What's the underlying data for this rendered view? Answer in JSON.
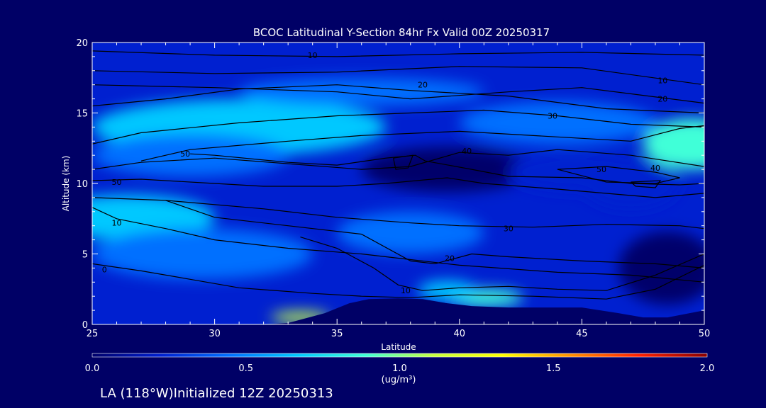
{
  "chart_data": {
    "type": "heatmap",
    "title": "BCOC Latitudinal Y-Section 84hr  Fx Valid 00Z 20250317",
    "xlabel": "Latitude",
    "ylabel": "Altitude (km)",
    "xlim": [
      25,
      50
    ],
    "ylim": [
      0,
      20
    ],
    "x_ticks": [
      "25",
      "30",
      "35",
      "40",
      "45",
      "50"
    ],
    "y_ticks": [
      "0",
      "5",
      "10",
      "15",
      "20"
    ],
    "colorbar": {
      "label_line1": "1.0",
      "unit": "(ug/m³)",
      "range": [
        0.0,
        2.0
      ],
      "ticks": [
        "0.0",
        "0.5",
        "1.0",
        "1.5",
        "2.0"
      ],
      "colors": [
        "#00006a",
        "#0020d0",
        "#0070ff",
        "#00c8ff",
        "#40ffd8",
        "#c8ff40",
        "#ffff00",
        "#ff9000",
        "#ff2000",
        "#8a0000"
      ]
    },
    "background_level": 0.3,
    "field_blobs": [
      {
        "lat": 27.5,
        "alt": 7.9,
        "value": 1.2,
        "rlat": 1.6,
        "ralt": 0.6
      },
      {
        "lat": 26.5,
        "alt": 7.6,
        "value": 0.7,
        "rlat": 3.5,
        "ralt": 1.6
      },
      {
        "lat": 29.5,
        "alt": 5.0,
        "value": 0.55,
        "rlat": 4.5,
        "ralt": 1.8
      },
      {
        "lat": 31.0,
        "alt": 14.0,
        "value": 0.6,
        "rlat": 6.0,
        "ralt": 2.0
      },
      {
        "lat": 36.0,
        "alt": 16.5,
        "value": 0.55,
        "rlat": 5.0,
        "ralt": 1.0
      },
      {
        "lat": 41.0,
        "alt": 1.9,
        "value": 0.95,
        "rlat": 1.6,
        "ralt": 0.6
      },
      {
        "lat": 39.5,
        "alt": 2.4,
        "value": 0.75,
        "rlat": 1.2,
        "ralt": 0.7
      },
      {
        "lat": 33.5,
        "alt": 0.5,
        "value": 1.0,
        "rlat": 1.2,
        "ralt": 0.4
      },
      {
        "lat": 49.5,
        "alt": 12.8,
        "value": 0.8,
        "rlat": 2.0,
        "ralt": 1.8
      },
      {
        "lat": 44.0,
        "alt": 14.3,
        "value": 0.55,
        "rlat": 4.0,
        "ralt": 1.5
      },
      {
        "lat": 47.0,
        "alt": 10.0,
        "value": 0.25,
        "rlat": 2.0,
        "ralt": 1.8
      },
      {
        "lat": 39.5,
        "alt": 11.0,
        "value": 0.1,
        "rlat": 3.5,
        "ralt": 1.6
      },
      {
        "lat": 45.0,
        "alt": 10.8,
        "value": 0.12,
        "rlat": 3.0,
        "ralt": 1.4
      },
      {
        "lat": 48.5,
        "alt": 4.0,
        "value": 0.0,
        "rlat": 2.0,
        "ralt": 2.6
      },
      {
        "lat": 38.0,
        "alt": 6.5,
        "value": 0.45,
        "rlat": 3.0,
        "ralt": 1.5
      },
      {
        "lat": 29.0,
        "alt": 12.0,
        "value": 0.35,
        "rlat": 4.0,
        "ralt": 1.5
      }
    ],
    "terrain": [
      [
        25,
        0
      ],
      [
        30,
        0
      ],
      [
        32,
        0
      ],
      [
        33,
        0.1
      ],
      [
        34.5,
        0.8
      ],
      [
        35.5,
        1.5
      ],
      [
        36.3,
        1.8
      ],
      [
        37.5,
        1.85
      ],
      [
        38.5,
        1.8
      ],
      [
        39.5,
        1.5
      ],
      [
        40.5,
        1.3
      ],
      [
        42,
        1.2
      ],
      [
        45,
        1.2
      ],
      [
        46.5,
        0.8
      ],
      [
        47.5,
        0.5
      ],
      [
        48.5,
        0.5
      ],
      [
        50,
        1.0
      ]
    ],
    "contours": [
      {
        "label": "10",
        "label_at": [
          34.0,
          19.1
        ],
        "points": [
          [
            25,
            19.4
          ],
          [
            30,
            19.1
          ],
          [
            35,
            19.0
          ],
          [
            40,
            19.2
          ],
          [
            45,
            19.3
          ],
          [
            50,
            19.1
          ]
        ]
      },
      {
        "label": "10",
        "label_at": [
          48.3,
          17.3
        ],
        "points": [
          [
            25,
            18.0
          ],
          [
            30,
            17.8
          ],
          [
            35,
            17.9
          ],
          [
            40,
            18.3
          ],
          [
            45,
            18.2
          ],
          [
            50,
            17.0
          ]
        ]
      },
      {
        "label": "20",
        "label_at": [
          48.3,
          16.0
        ],
        "points": [
          [
            25,
            17.0
          ],
          [
            30,
            16.8
          ],
          [
            35,
            16.5
          ],
          [
            38,
            16.0
          ],
          [
            42,
            16.5
          ],
          [
            45,
            16.8
          ],
          [
            50,
            15.7
          ]
        ]
      },
      {
        "label": "20",
        "label_at": [
          38.5,
          17.0
        ],
        "points": [
          [
            25,
            15.5
          ],
          [
            28,
            16.0
          ],
          [
            31,
            16.7
          ],
          [
            35,
            17.0
          ],
          [
            38,
            16.6
          ],
          [
            42,
            16.2
          ],
          [
            46,
            15.3
          ],
          [
            50,
            15.0
          ]
        ]
      },
      {
        "label": "30",
        "label_at": [
          43.8,
          14.8
        ],
        "points": [
          [
            25,
            12.8
          ],
          [
            27,
            13.6
          ],
          [
            31,
            14.3
          ],
          [
            35,
            14.8
          ],
          [
            38,
            15.0
          ],
          [
            41,
            15.2
          ],
          [
            44,
            14.8
          ],
          [
            47,
            14.2
          ],
          [
            50,
            14.0
          ]
        ]
      },
      {
        "label": "40",
        "label_at": [
          48.0,
          11.1
        ],
        "points": [
          [
            27,
            11.6
          ],
          [
            29,
            12.4
          ],
          [
            33,
            13.0
          ],
          [
            36,
            13.4
          ],
          [
            40,
            13.7
          ],
          [
            44,
            13.3
          ],
          [
            47,
            13.0
          ],
          [
            49,
            13.9
          ],
          [
            50,
            14.1
          ]
        ]
      },
      {
        "label": "40",
        "label_at": [
          40.3,
          12.3
        ],
        "points": [
          [
            25,
            11.0
          ],
          [
            27,
            11.5
          ],
          [
            30,
            11.8
          ],
          [
            33,
            11.4
          ],
          [
            36,
            11.0
          ],
          [
            38,
            11.2
          ],
          [
            40,
            12.2
          ],
          [
            42,
            12.0
          ],
          [
            44,
            12.4
          ],
          [
            47,
            12.0
          ],
          [
            50,
            11.2
          ]
        ]
      },
      {
        "label": "50",
        "label_at": [
          28.8,
          12.1
        ],
        "points": [
          [
            29,
            12.1
          ],
          [
            30,
            12.0
          ],
          [
            33,
            11.5
          ],
          [
            35,
            11.3
          ],
          [
            37,
            11.8
          ],
          [
            38.2,
            12.0
          ],
          [
            38.6,
            11.6
          ],
          [
            40.5,
            11.0
          ],
          [
            42,
            10.5
          ],
          [
            45,
            10.4
          ],
          [
            47,
            10.0
          ],
          [
            49,
            9.9
          ],
          [
            50,
            10.0
          ]
        ]
      },
      {
        "label": "50",
        "label_at": [
          45.8,
          11.0
        ],
        "points": [
          [
            44,
            11.0
          ],
          [
            46,
            11.2
          ],
          [
            48,
            10.8
          ],
          [
            49,
            10.4
          ],
          [
            48,
            10.0
          ],
          [
            46,
            10.1
          ],
          [
            44,
            11.0
          ]
        ]
      },
      {
        "label": "",
        "label_at": [
          0,
          0
        ],
        "points": [
          [
            37.3,
            11.8
          ],
          [
            38.1,
            12.0
          ],
          [
            37.9,
            11.1
          ],
          [
            37.4,
            11.0
          ],
          [
            37.3,
            11.8
          ]
        ]
      },
      {
        "label": "",
        "label_at": [
          0,
          0
        ],
        "points": [
          [
            47.0,
            10.1
          ],
          [
            48.2,
            10.2
          ],
          [
            48.0,
            9.7
          ],
          [
            47.2,
            9.8
          ],
          [
            47.0,
            10.1
          ]
        ]
      },
      {
        "label": "50",
        "label_at": [
          26.0,
          10.1
        ],
        "points": [
          [
            25,
            10.2
          ],
          [
            27,
            10.3
          ],
          [
            30,
            10.0
          ],
          [
            32,
            9.8
          ],
          [
            35,
            9.8
          ],
          [
            37,
            10.0
          ],
          [
            39.5,
            10.4
          ],
          [
            41,
            10.0
          ],
          [
            44,
            9.6
          ],
          [
            48,
            9.0
          ],
          [
            50,
            9.3
          ]
        ]
      },
      {
        "label": "30",
        "label_at": [
          42.0,
          6.8
        ],
        "points": [
          [
            25,
            9.0
          ],
          [
            28,
            8.8
          ],
          [
            32,
            8.2
          ],
          [
            35,
            7.6
          ],
          [
            38,
            7.2
          ],
          [
            40,
            7.0
          ],
          [
            43,
            6.9
          ],
          [
            46,
            7.1
          ],
          [
            49,
            7.0
          ],
          [
            50,
            6.8
          ]
        ]
      },
      {
        "label": "10",
        "label_at": [
          26.0,
          7.2
        ],
        "points": [
          [
            25,
            8.3
          ],
          [
            26,
            7.5
          ],
          [
            28,
            6.8
          ],
          [
            30,
            6.0
          ],
          [
            33,
            5.4
          ],
          [
            36,
            5.0
          ],
          [
            38,
            4.6
          ],
          [
            40,
            4.2
          ],
          [
            44,
            3.7
          ],
          [
            47,
            3.5
          ],
          [
            50,
            3.0
          ]
        ]
      },
      {
        "label": "20",
        "label_at": [
          39.6,
          4.7
        ],
        "points": [
          [
            28,
            8.8
          ],
          [
            30,
            7.6
          ],
          [
            33,
            7.0
          ],
          [
            36,
            6.4
          ],
          [
            38,
            4.5
          ],
          [
            39,
            4.3
          ],
          [
            40.5,
            5.0
          ],
          [
            42,
            4.8
          ],
          [
            45,
            4.5
          ],
          [
            48,
            4.3
          ],
          [
            50,
            4.0
          ]
        ]
      },
      {
        "label": "10",
        "label_at": [
          37.8,
          2.4
        ],
        "points": [
          [
            33.5,
            6.2
          ],
          [
            35,
            5.4
          ],
          [
            36.5,
            4.0
          ],
          [
            37.5,
            2.8
          ],
          [
            38.5,
            2.4
          ],
          [
            40,
            2.6
          ],
          [
            42,
            2.7
          ],
          [
            44,
            2.5
          ],
          [
            46,
            2.4
          ],
          [
            48,
            3.5
          ],
          [
            50,
            5.0
          ]
        ]
      },
      {
        "label": "0",
        "label_at": [
          25.5,
          3.9
        ],
        "points": [
          [
            25,
            4.3
          ],
          [
            27,
            3.8
          ],
          [
            29,
            3.2
          ],
          [
            31,
            2.6
          ],
          [
            34,
            2.2
          ],
          [
            36,
            2.0
          ],
          [
            38,
            1.9
          ],
          [
            40,
            2.1
          ],
          [
            43,
            2.0
          ],
          [
            46,
            1.8
          ],
          [
            48,
            2.5
          ],
          [
            50,
            4.2
          ]
        ]
      }
    ]
  },
  "footer": {
    "text": "LA (118°W)Initialized 12Z 20250313"
  }
}
